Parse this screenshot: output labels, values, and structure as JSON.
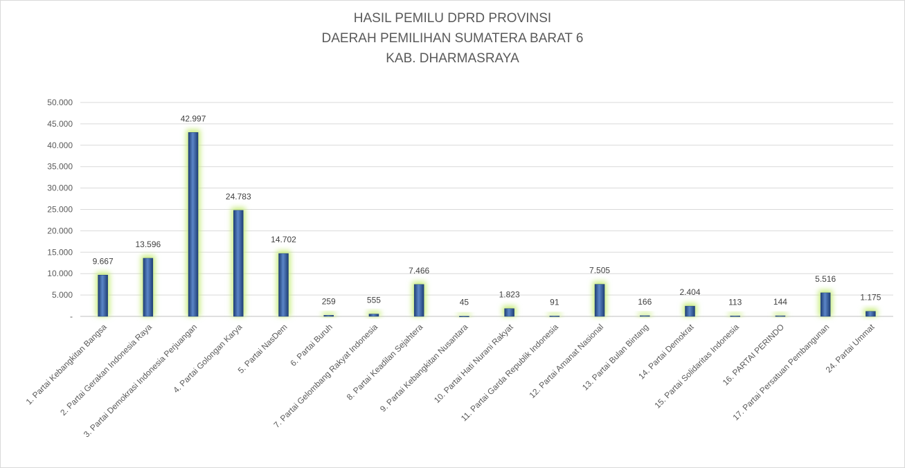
{
  "chart_data": {
    "type": "bar",
    "title_lines": [
      "HASIL PEMILU DPRD PROVINSI",
      "DAERAH PEMILIHAN SUMATERA BARAT 6",
      "KAB. DHARMASRAYA"
    ],
    "xlabel": "",
    "ylabel": "",
    "ylim": [
      0,
      50000
    ],
    "yticks": [
      0,
      5000,
      10000,
      15000,
      20000,
      25000,
      30000,
      35000,
      40000,
      45000,
      50000
    ],
    "ytick_labels": [
      "-",
      "5.000",
      "10.000",
      "15.000",
      "20.000",
      "25.000",
      "30.000",
      "35.000",
      "40.000",
      "45.000",
      "50.000"
    ],
    "grid": true,
    "legend": "none",
    "categories": [
      "1. Partai Kebangkitan Bangsa",
      "2. Partai Gerakan Indonesia Raya",
      "3. Partai Demokrasi Indonesia Perjuangan",
      "4. Partai Golongan Karya",
      "5. Partai NasDem",
      "6. Partai Buruh",
      "7. Partai Gelombang Rakyat Indonesia",
      "8. Partai Keadilan Sejahtera",
      "9. Partai Kebangkitan Nusantara",
      "10. Partai Hati Nurani Rakyat",
      "11. Partai Garda Republik Indonesia",
      "12. Partai Amanat Nasional",
      "13. Partai Bulan Bintang",
      "14. Partai Demokrat",
      "15. Partai Solidaritas Indonesia",
      "16. PARTAI PERINDO",
      "17. Partai Persatuan Pembangunan",
      "24. Partai Ummat"
    ],
    "values": [
      9667,
      13596,
      42997,
      24783,
      14702,
      259,
      555,
      7466,
      45,
      1823,
      91,
      7505,
      166,
      2404,
      113,
      144,
      5516,
      1175
    ],
    "value_labels": [
      "9.667",
      "13.596",
      "42.997",
      "24.783",
      "14.702",
      "259",
      "555",
      "7.466",
      "45",
      "1.823",
      "91",
      "7.505",
      "166",
      "2.404",
      "113",
      "144",
      "5.516",
      "1.175"
    ],
    "colors": {
      "bar": "#2e5597",
      "bar_highlight": "#5b86c8",
      "glow": "#c6ec7c",
      "grid": "#d9d9d9",
      "text": "#595959"
    }
  }
}
